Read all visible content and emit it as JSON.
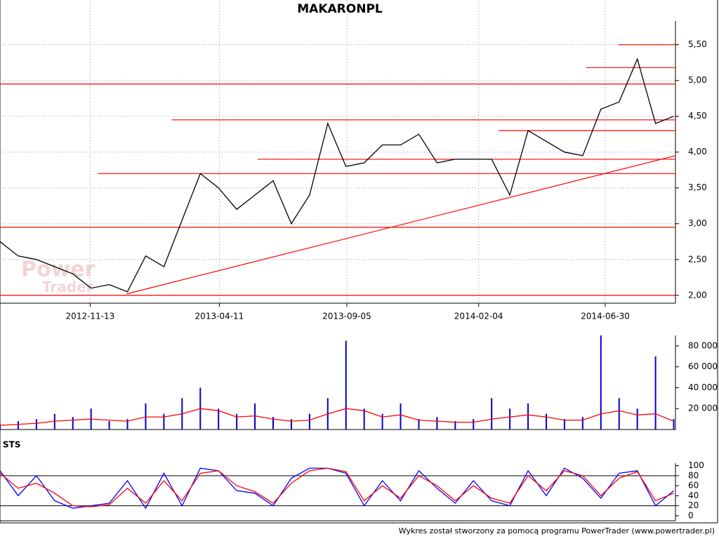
{
  "chart_data": [
    {
      "type": "line",
      "title": "MAKARONPL",
      "watermark": [
        "Power",
        "Trader"
      ],
      "x": [
        "2012-08-01",
        "2012-08-22",
        "2012-09-12",
        "2012-10-03",
        "2012-10-24",
        "2012-11-14",
        "2012-12-05",
        "2012-12-26",
        "2013-01-16",
        "2013-02-06",
        "2013-02-27",
        "2013-03-20",
        "2013-04-10",
        "2013-05-01",
        "2013-05-22",
        "2013-06-12",
        "2013-07-03",
        "2013-07-24",
        "2013-08-14",
        "2013-09-04",
        "2013-09-25",
        "2013-10-16",
        "2013-11-06",
        "2013-11-27",
        "2013-12-18",
        "2014-01-08",
        "2014-01-29",
        "2014-02-19",
        "2014-03-12",
        "2014-04-02",
        "2014-04-23",
        "2014-05-14",
        "2014-06-04",
        "2014-06-25",
        "2014-07-16",
        "2014-08-06",
        "2014-08-27",
        "2014-09-17"
      ],
      "values": [
        2.75,
        2.55,
        2.5,
        2.4,
        2.3,
        2.1,
        2.15,
        2.05,
        2.55,
        2.4,
        3.05,
        3.7,
        3.5,
        3.2,
        3.4,
        3.6,
        3.0,
        3.4,
        4.4,
        3.8,
        3.85,
        4.1,
        4.1,
        4.25,
        3.85,
        3.9,
        3.9,
        3.9,
        3.4,
        4.3,
        4.15,
        4.0,
        3.95,
        4.6,
        4.7,
        5.3,
        4.4,
        4.5
      ],
      "color": "#000000",
      "xlim": [
        "2012-08-01",
        "2014-09-19"
      ],
      "xticks": [
        "2012-11-13",
        "2013-04-11",
        "2013-09-05",
        "2014-02-04",
        "2014-06-30"
      ],
      "ylim": [
        1.89,
        5.83
      ],
      "yticks": [
        {
          "value": 2,
          "label": "2,00"
        },
        {
          "value": 2.5,
          "label": "2,50"
        },
        {
          "value": 3,
          "label": "3,00"
        },
        {
          "value": 3.5,
          "label": "3,50"
        },
        {
          "value": 4,
          "label": "4,00"
        },
        {
          "value": 4.5,
          "label": "4,50"
        },
        {
          "value": 5,
          "label": "5,00"
        },
        {
          "value": 5.5,
          "label": "5,50"
        }
      ],
      "grid": true,
      "level_color": "#ff0000",
      "levels": [
        {
          "from": "2012-08-01",
          "value": 2.0
        },
        {
          "from": "2012-08-01",
          "value": 2.95
        },
        {
          "from": "2012-08-01",
          "value": 4.95
        },
        {
          "from": "2012-11-22",
          "value": 3.7
        },
        {
          "from": "2013-05-25",
          "value": 3.9
        },
        {
          "from": "2013-02-15",
          "value": 4.45
        },
        {
          "from": "2014-02-27",
          "value": 4.3
        },
        {
          "from": "2014-06-08",
          "value": 5.18
        },
        {
          "from": "2014-07-15",
          "value": 5.5
        }
      ],
      "trendline": {
        "x": [
          "2012-12-25",
          "2014-09-19"
        ],
        "values": [
          2.02,
          3.95
        ]
      }
    },
    {
      "type": "bar",
      "x": [
        "2012-08-01",
        "2012-08-22",
        "2012-09-12",
        "2012-10-03",
        "2012-10-24",
        "2012-11-14",
        "2012-12-05",
        "2012-12-26",
        "2013-01-16",
        "2013-02-06",
        "2013-02-27",
        "2013-03-20",
        "2013-04-10",
        "2013-05-01",
        "2013-05-22",
        "2013-06-12",
        "2013-07-03",
        "2013-07-24",
        "2013-08-14",
        "2013-09-04",
        "2013-09-25",
        "2013-10-16",
        "2013-11-06",
        "2013-11-27",
        "2013-12-18",
        "2014-01-08",
        "2014-01-29",
        "2014-02-19",
        "2014-03-12",
        "2014-04-02",
        "2014-04-23",
        "2014-05-14",
        "2014-06-04",
        "2014-06-25",
        "2014-07-16",
        "2014-08-06",
        "2014-08-27",
        "2014-09-17"
      ],
      "values": [
        5000,
        8000,
        10000,
        15000,
        12000,
        20000,
        8000,
        10000,
        25000,
        15000,
        30000,
        40000,
        20000,
        15000,
        25000,
        12000,
        10000,
        15000,
        30000,
        85000,
        20000,
        15000,
        25000,
        10000,
        12000,
        8000,
        10000,
        30000,
        20000,
        25000,
        15000,
        10000,
        12000,
        90000,
        30000,
        20000,
        70000,
        10000
      ],
      "color": "#0000cc",
      "line_values": [
        4000,
        5000,
        6000,
        8000,
        9000,
        10000,
        9000,
        8000,
        12000,
        12000,
        15000,
        20000,
        18000,
        12000,
        13000,
        10000,
        8000,
        9000,
        15000,
        20000,
        18000,
        12000,
        14000,
        9000,
        8000,
        7000,
        7000,
        10000,
        12000,
        14000,
        12000,
        9000,
        9000,
        15000,
        18000,
        14000,
        15000,
        8000
      ],
      "line_color": "#ff0000",
      "xlim": [
        "2012-08-01",
        "2014-09-19"
      ],
      "ylim": [
        0,
        90000
      ],
      "yticks": [
        {
          "value": 20000,
          "label": "20 000"
        },
        {
          "value": 40000,
          "label": "40 000"
        },
        {
          "value": 60000,
          "label": "60 000"
        },
        {
          "value": 80000,
          "label": "80 000"
        }
      ]
    },
    {
      "type": "line",
      "title": "STS",
      "x": [
        "2012-08-01",
        "2012-08-22",
        "2012-09-12",
        "2012-10-03",
        "2012-10-24",
        "2012-11-14",
        "2012-12-05",
        "2012-12-26",
        "2013-01-16",
        "2013-02-06",
        "2013-02-27",
        "2013-03-20",
        "2013-04-10",
        "2013-05-01",
        "2013-05-22",
        "2013-06-12",
        "2013-07-03",
        "2013-07-24",
        "2013-08-14",
        "2013-09-04",
        "2013-09-25",
        "2013-10-16",
        "2013-11-06",
        "2013-11-27",
        "2013-12-18",
        "2014-01-08",
        "2014-01-29",
        "2014-02-19",
        "2014-03-12",
        "2014-04-02",
        "2014-04-23",
        "2014-05-14",
        "2014-06-04",
        "2014-06-25",
        "2014-07-16",
        "2014-08-06",
        "2014-08-27",
        "2014-09-17"
      ],
      "series": [
        {
          "color": "#0000ff",
          "values": [
            90,
            40,
            80,
            30,
            15,
            20,
            25,
            70,
            15,
            85,
            20,
            95,
            90,
            50,
            45,
            20,
            75,
            95,
            95,
            85,
            20,
            70,
            30,
            90,
            55,
            25,
            70,
            30,
            20,
            90,
            40,
            95,
            75,
            35,
            85,
            90,
            20,
            50
          ]
        },
        {
          "color": "#ff0000",
          "values": [
            85,
            55,
            65,
            45,
            20,
            18,
            22,
            55,
            25,
            70,
            30,
            85,
            90,
            60,
            48,
            25,
            65,
            90,
            95,
            88,
            30,
            60,
            35,
            80,
            60,
            30,
            60,
            35,
            25,
            80,
            50,
            90,
            80,
            40,
            75,
            88,
            30,
            45
          ]
        }
      ],
      "xlim": [
        "2012-08-01",
        "2014-09-19"
      ],
      "ylim": [
        -10,
        105
      ],
      "yticks": [
        0,
        20,
        40,
        60,
        80,
        100
      ],
      "ref_lines": [
        20,
        80
      ],
      "footer": "Wykres został stworzony za pomocą programu PowerTrader (www.powertrader.pl)"
    }
  ]
}
